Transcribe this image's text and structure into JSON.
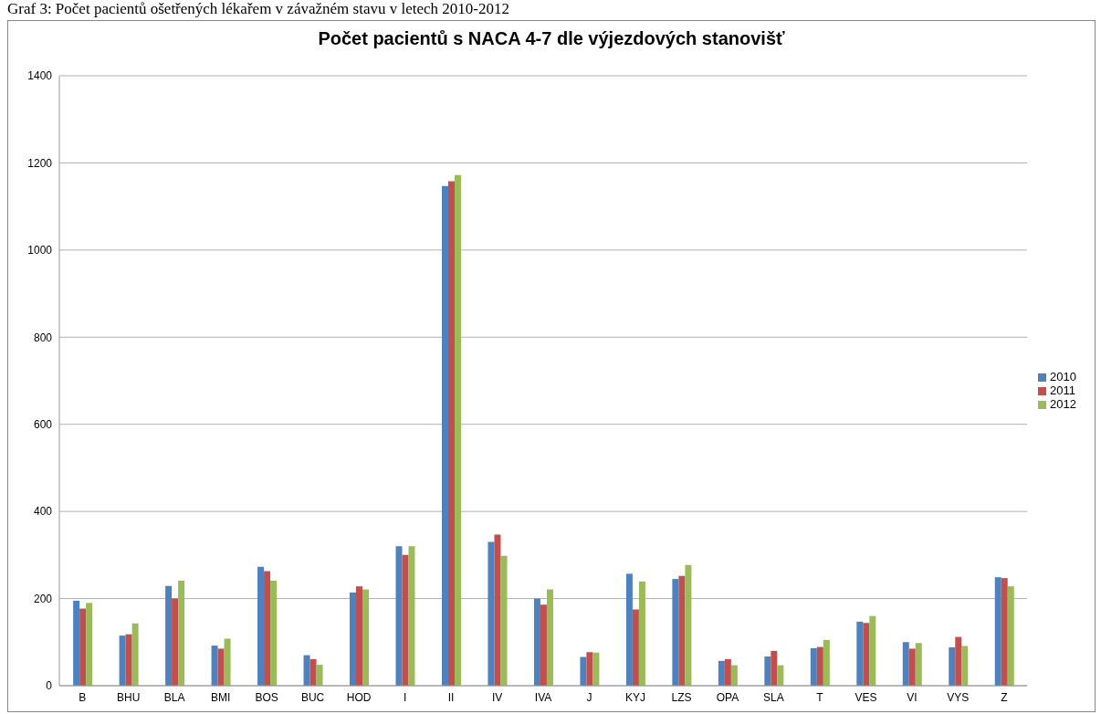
{
  "chart_data": {
    "type": "bar",
    "title": "Počet pacientů s NACA 4-7 dle výjezdových stanovišť",
    "annotations": [
      "Graf 3: Počet pacientů ošetřených lékařem v závažném stavu v letech 2010-2012"
    ],
    "categories": [
      "B",
      "BHU",
      "BLA",
      "BMI",
      "BOS",
      "BUC",
      "HOD",
      "I",
      "II",
      "IV",
      "IVA",
      "J",
      "KYJ",
      "LZS",
      "OPA",
      "SLA",
      "T",
      "VES",
      "VI",
      "VYS",
      "Z"
    ],
    "series": [
      {
        "name": "2010",
        "color": "#4f81bd",
        "values": [
          195,
          115,
          229,
          92,
          273,
          70,
          214,
          320,
          1147,
          330,
          200,
          66,
          257,
          245,
          57,
          67,
          86,
          147,
          100,
          88,
          249
        ]
      },
      {
        "name": "2011",
        "color": "#c0504d",
        "values": [
          177,
          118,
          200,
          85,
          263,
          61,
          228,
          300,
          1158,
          347,
          186,
          77,
          175,
          252,
          61,
          80,
          89,
          144,
          85,
          112,
          247
        ]
      },
      {
        "name": "2012",
        "color": "#9bbb59",
        "values": [
          190,
          143,
          241,
          108,
          241,
          48,
          221,
          320,
          1172,
          298,
          221,
          76,
          239,
          277,
          47,
          47,
          105,
          160,
          98,
          91,
          228
        ]
      }
    ],
    "ylim": [
      0,
      1400
    ],
    "yticks": [
      0,
      200,
      400,
      600,
      800,
      1000,
      1200,
      1400
    ],
    "grid": "y",
    "legend": "right"
  }
}
